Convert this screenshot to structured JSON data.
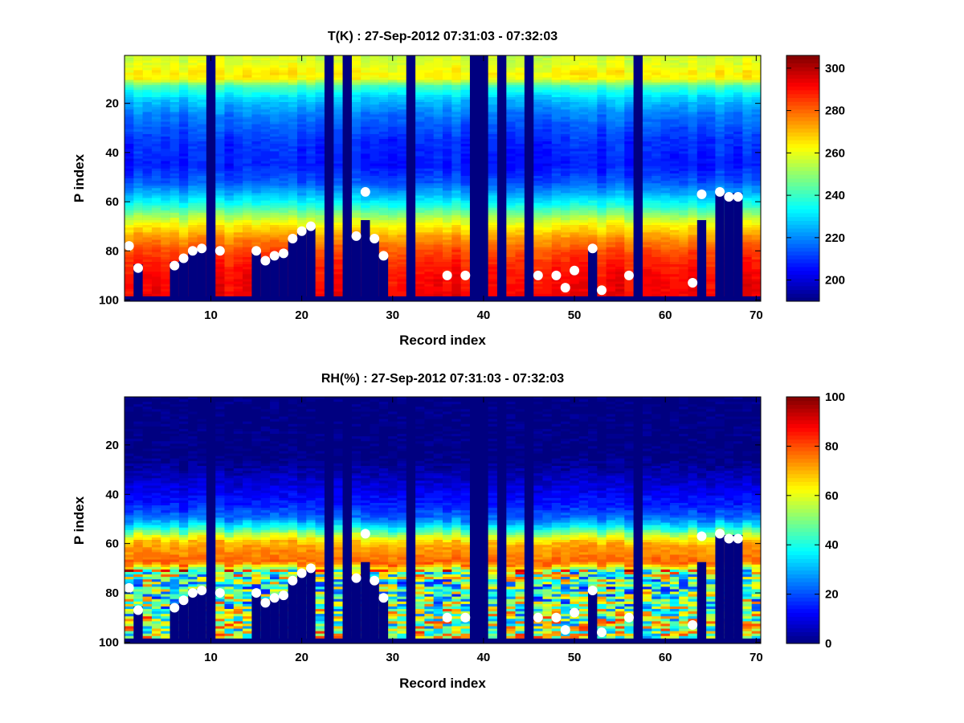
{
  "chart_data": [
    {
      "type": "heatmap",
      "title": "T(K) : 27-Sep-2012 07:31:03 - 07:32:03",
      "xlabel": "Record index",
      "ylabel": "P index",
      "xlim": [
        0.5,
        70.5
      ],
      "ylim": [
        0.5,
        100.5
      ],
      "xticks": [
        10,
        20,
        30,
        40,
        50,
        60,
        70
      ],
      "yticks": [
        20,
        40,
        60,
        80,
        100
      ],
      "colorbar": {
        "clim": [
          190,
          306
        ],
        "ticks": [
          200,
          220,
          240,
          260,
          280,
          300
        ]
      },
      "colormap": "jet",
      "n_records": 70,
      "n_levels": 100,
      "valid_top_row": 98
    },
    {
      "type": "heatmap",
      "title": "RH(%) : 27-Sep-2012 07:31:03 - 07:32:03",
      "xlabel": "Record index",
      "ylabel": "P index",
      "xlim": [
        0.5,
        70.5
      ],
      "ylim": [
        0.5,
        100.5
      ],
      "xticks": [
        10,
        20,
        30,
        40,
        50,
        60,
        70
      ],
      "yticks": [
        20,
        40,
        60,
        80,
        100
      ],
      "colorbar": {
        "clim": [
          0,
          100
        ],
        "ticks": [
          0,
          20,
          40,
          60,
          80,
          100
        ]
      },
      "colormap": "jet",
      "n_records": 70,
      "n_levels": 100,
      "valid_top_row": 98
    }
  ],
  "surface_points": [
    {
      "x": 1,
      "p": 78
    },
    {
      "x": 2,
      "p": 87
    },
    {
      "x": 6,
      "p": 86
    },
    {
      "x": 7,
      "p": 83
    },
    {
      "x": 8,
      "p": 80
    },
    {
      "x": 9,
      "p": 79
    },
    {
      "x": 11,
      "p": 80
    },
    {
      "x": 15,
      "p": 80
    },
    {
      "x": 16,
      "p": 84
    },
    {
      "x": 17,
      "p": 82
    },
    {
      "x": 18,
      "p": 81
    },
    {
      "x": 19,
      "p": 75
    },
    {
      "x": 20,
      "p": 72
    },
    {
      "x": 21,
      "p": 70
    },
    {
      "x": 26,
      "p": 74
    },
    {
      "x": 27,
      "p": 56
    },
    {
      "x": 28,
      "p": 75
    },
    {
      "x": 29,
      "p": 82
    },
    {
      "x": 36,
      "p": 90
    },
    {
      "x": 38,
      "p": 90
    },
    {
      "x": 46,
      "p": 90
    },
    {
      "x": 48,
      "p": 90
    },
    {
      "x": 49,
      "p": 95
    },
    {
      "x": 50,
      "p": 88
    },
    {
      "x": 52,
      "p": 79
    },
    {
      "x": 53,
      "p": 96
    },
    {
      "x": 56,
      "p": 90
    },
    {
      "x": 63,
      "p": 93
    },
    {
      "x": 64,
      "p": 57
    },
    {
      "x": 66,
      "p": 56
    },
    {
      "x": 67,
      "p": 58
    },
    {
      "x": 68,
      "p": 58
    }
  ],
  "missing_records": [
    10,
    23,
    25,
    32,
    39,
    40,
    42,
    45,
    57
  ],
  "profile_bars": [
    {
      "x": 2,
      "top": 86
    },
    {
      "x": 3,
      "top": 101
    },
    {
      "x": 4,
      "top": 101
    },
    {
      "x": 5,
      "top": 101
    },
    {
      "x": 6,
      "top": 85
    },
    {
      "x": 7,
      "top": 83
    },
    {
      "x": 8,
      "top": 80
    },
    {
      "x": 9,
      "top": 79
    },
    {
      "x": 11,
      "top": 101
    },
    {
      "x": 12,
      "top": 101
    },
    {
      "x": 13,
      "top": 101
    },
    {
      "x": 14,
      "top": 101
    },
    {
      "x": 15,
      "top": 80
    },
    {
      "x": 16,
      "top": 84
    },
    {
      "x": 17,
      "top": 82
    },
    {
      "x": 18,
      "top": 81
    },
    {
      "x": 19,
      "top": 75
    },
    {
      "x": 20,
      "top": 72
    },
    {
      "x": 21,
      "top": 70
    },
    {
      "x": 22,
      "top": 101
    },
    {
      "x": 26,
      "top": 74
    },
    {
      "x": 27,
      "top": 68
    },
    {
      "x": 28,
      "top": 75
    },
    {
      "x": 29,
      "top": 82
    },
    {
      "x": 52,
      "top": 79
    },
    {
      "x": 64,
      "top": 68
    },
    {
      "x": 66,
      "top": 57
    },
    {
      "x": 67,
      "top": 57
    },
    {
      "x": 68,
      "top": 57
    }
  ]
}
